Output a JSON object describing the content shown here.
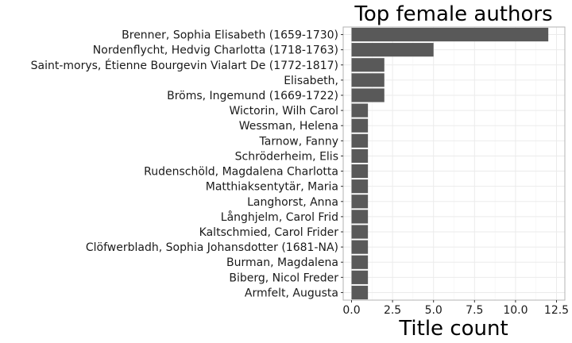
{
  "chart_data": {
    "type": "bar",
    "orientation": "horizontal",
    "title": "Top female authors",
    "xlabel": "Title count",
    "ylabel": "",
    "xlim": [
      0,
      12.5
    ],
    "x_ticks": [
      "0.0",
      "2.5",
      "5.0",
      "7.5",
      "10.0",
      "12.5"
    ],
    "grid": true,
    "categories": [
      "Brenner, Sophia Elisabeth (1659-1730)",
      "Nordenflycht, Hedvig Charlotta (1718-1763)",
      "Saint-morys, Étienne Bourgevin Vialart De (1772-1817)",
      "Elisabeth,",
      "Bröms, Ingemund (1669-1722)",
      "Wictorin, Wilh Carol",
      "Wessman, Helena",
      "Tarnow, Fanny",
      "Schröderheim, Elis",
      "Rudenschöld, Magdalena Charlotta",
      "Matthiaksentytär, Maria",
      "Langhorst, Anna",
      "Långhjelm, Carol Frid",
      "Kaltschmied, Carol Frider",
      "Clöfwerbladh, Sophia Johansdotter (1681-NA)",
      "Burman, Magdalena",
      "Biberg, Nicol Freder",
      "Armfelt, Augusta"
    ],
    "values": [
      12,
      5,
      2,
      2,
      2,
      1,
      1,
      1,
      1,
      1,
      1,
      1,
      1,
      1,
      1,
      1,
      1,
      1
    ],
    "colors": {
      "bar": "#595959",
      "grid": "#ebebeb",
      "panel_border": "#b3b3b3",
      "background": "#ffffff"
    }
  }
}
